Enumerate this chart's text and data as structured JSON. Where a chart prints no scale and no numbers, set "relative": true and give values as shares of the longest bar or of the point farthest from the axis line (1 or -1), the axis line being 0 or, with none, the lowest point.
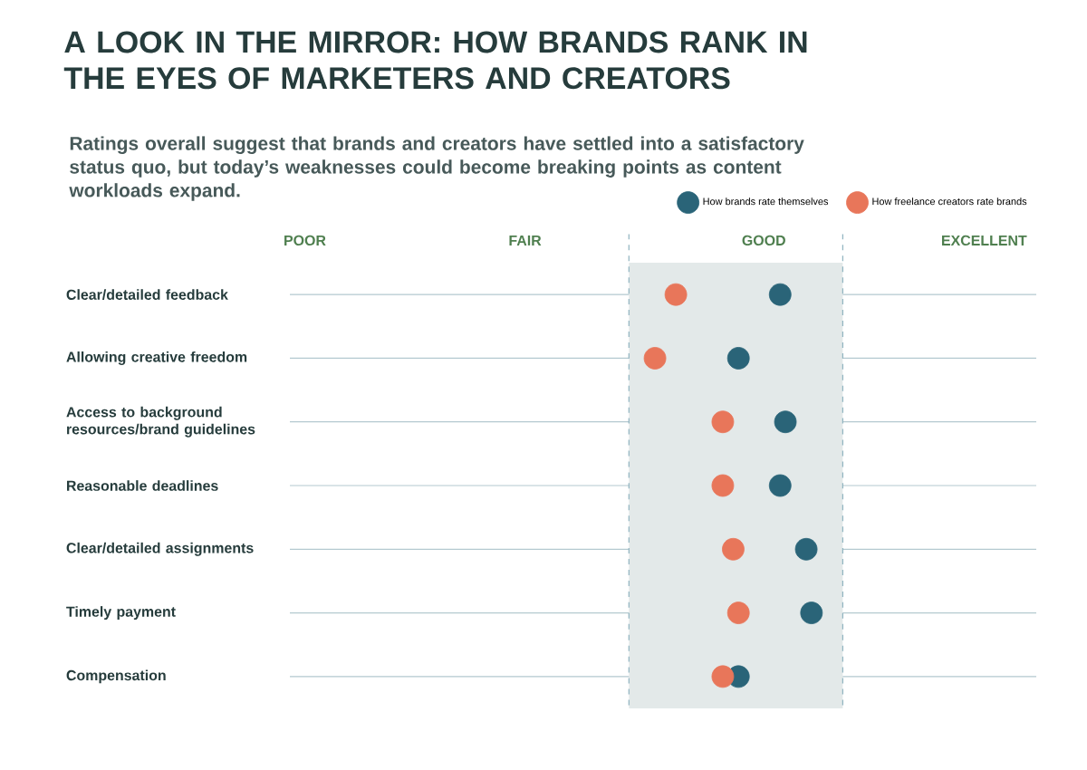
{
  "chart_data": {
    "type": "scatter",
    "orientation": "horizontal",
    "relative": true,
    "title": "A LOOK IN THE MIRROR: HOW BRANDS RANK IN THE EYES OF MARKETERS AND CREATORS",
    "subtitle": "Ratings overall suggest that brands and creators have settled into a satisfactory status quo, but today’s weaknesses could become breaking points as content workloads expand.",
    "categories": [
      "Clear/detailed feedback",
      "Allowing creative freedom",
      "Access to background resources/brand guidelines",
      "Reasonable deadlines",
      "Clear/detailed assignments",
      "Timely payment",
      "Compensation"
    ],
    "series": [
      {
        "name": "How brands rate themselves",
        "color": "#2a6478",
        "values": [
          0.94,
          0.86,
          0.95,
          0.94,
          0.99,
          1,
          0.86
        ]
      },
      {
        "name": "How freelance creators rate brands",
        "color": "#e8765a",
        "values": [
          0.74,
          0.7,
          0.83,
          0.83,
          0.85,
          0.86,
          0.83
        ]
      }
    ],
    "annotations": [
      "POOR",
      "FAIR",
      "GOOD",
      "EXCELLENT"
    ],
    "bands": [
      {
        "axis": "x",
        "from": 0.65,
        "to": 1.06,
        "color": "#e3e9e9"
      }
    ],
    "ref_lines": [
      {
        "axis": "x",
        "value": 0.65,
        "line_style": "dashed",
        "color": "#8fb3bf"
      },
      {
        "axis": "x",
        "value": 1.06,
        "line_style": "dashed",
        "color": "#8fb3bf"
      }
    ],
    "grid": "y",
    "legend": "top right",
    "marker": "circle"
  }
}
